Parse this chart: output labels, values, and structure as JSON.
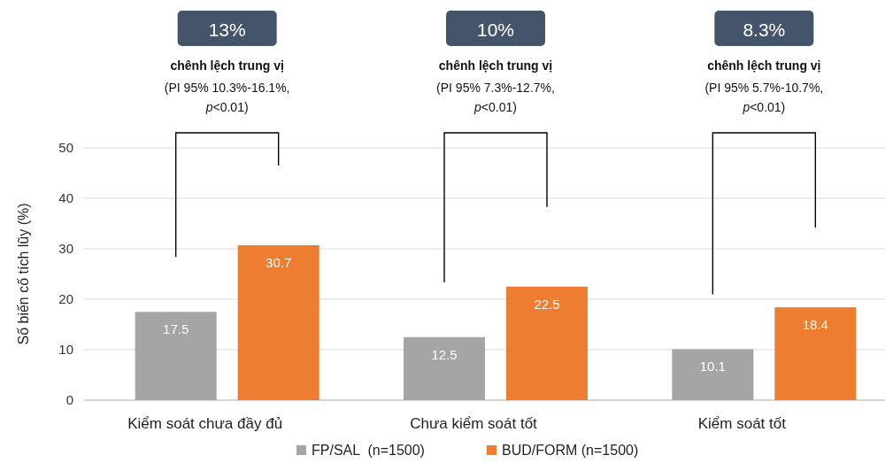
{
  "chart_data": {
    "type": "bar",
    "ylabel": "Số biến cố tích lũy (%)",
    "categories": [
      "Kiểm soát chưa đầy đủ",
      "Chưa kiểm soát tốt",
      "Kiểm soát tốt"
    ],
    "series": [
      {
        "name": "FP/SAL  (n=1500)",
        "color": "#a5a5a5",
        "values": [
          17.5,
          12.5,
          10.1
        ]
      },
      {
        "name": "BUD/FORM (n=1500)",
        "color": "#ed7d31",
        "values": [
          30.7,
          22.5,
          18.4
        ]
      }
    ],
    "data_labels": true,
    "ylim": [
      0,
      50
    ],
    "yticks": [
      0,
      10,
      20,
      30,
      40,
      50
    ],
    "grid": "y",
    "legend": "bottom",
    "annotations": [
      "13%",
      "chênh lệch trung vị",
      "(PI 95% 10.3%-16.1%, p<0.01)",
      "10%",
      "chênh lệch trung vị",
      "(PI 95% 7.3%-12.7%, p<0.01)",
      "8.3%",
      "chênh lệch trung vị",
      "(PI 95% 5.7%-10.7%, p<0.01)"
    ]
  }
}
